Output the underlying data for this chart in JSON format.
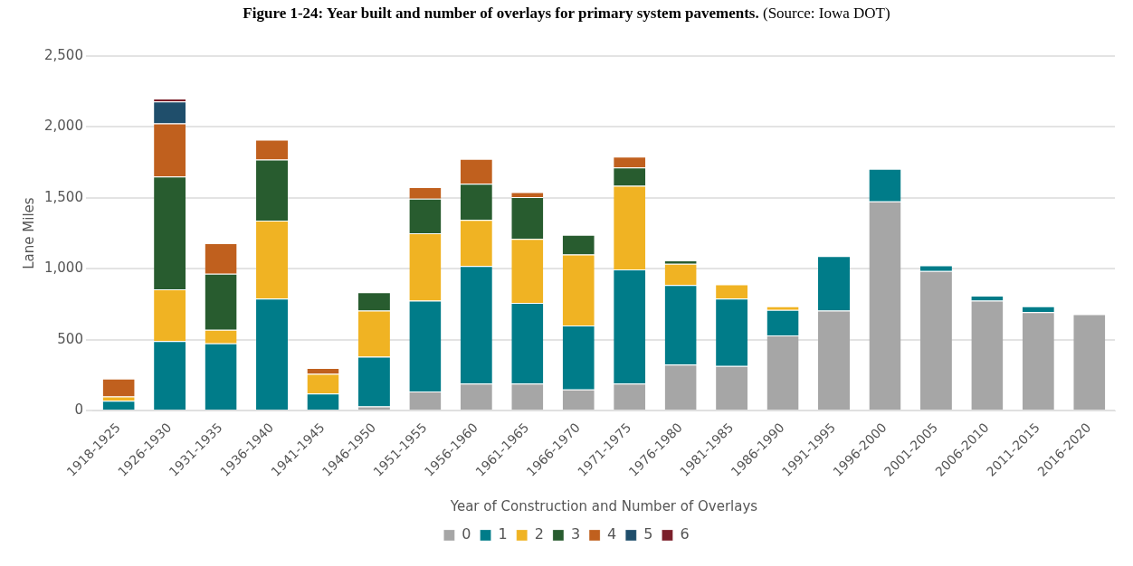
{
  "chart_data": {
    "type": "bar",
    "title": "Figure 1-24: Year built and number of overlays for primary system pavements.",
    "annotations": [
      "(Source: Iowa DOT)"
    ],
    "xlabel": "Year of Construction and Number of Overlays",
    "ylabel": "Lane Miles",
    "categories": [
      "1918-1925",
      "1926-1930",
      "1931-1935",
      "1936-1940",
      "1941-1945",
      "1946-1950",
      "1951-1955",
      "1956-1960",
      "1961-1965",
      "1966-1970",
      "1971-1975",
      "1976-1980",
      "1981-1985",
      "1986-1990",
      "1991-1995",
      "1996-2000",
      "2001-2005",
      "2006-2010",
      "2011-2015",
      "2016-2020"
    ],
    "stacked": true,
    "ylim": [
      0,
      2500
    ],
    "yticks": [
      {
        "value": 0,
        "label": "0"
      },
      {
        "value": 500,
        "label": "500"
      },
      {
        "value": 1000,
        "label": "1,000"
      },
      {
        "value": 1500,
        "label": "1,500"
      },
      {
        "value": 2000,
        "label": "2,000"
      },
      {
        "value": 2500,
        "label": "2,500"
      }
    ],
    "grid": "y",
    "legend": "bottom",
    "series": [
      {
        "name": "0",
        "color": "#a6a6a6",
        "values": [
          null,
          null,
          null,
          null,
          null,
          30,
          135,
          190,
          190,
          150,
          190,
          325,
          315,
          530,
          705,
          1475,
          985,
          775,
          695,
          680
        ]
      },
      {
        "name": "1",
        "color": "#007c89",
        "values": [
          70,
          490,
          475,
          790,
          120,
          350,
          640,
          830,
          570,
          450,
          805,
          560,
          475,
          180,
          385,
          230,
          40,
          35,
          40,
          null
        ]
      },
      {
        "name": "2",
        "color": "#f0b323",
        "values": [
          30,
          365,
          95,
          550,
          140,
          325,
          475,
          325,
          450,
          500,
          590,
          150,
          100,
          25,
          null,
          null,
          null,
          null,
          null,
          null
        ]
      },
      {
        "name": "3",
        "color": "#285c2f",
        "values": [
          null,
          795,
          395,
          430,
          null,
          130,
          245,
          255,
          295,
          140,
          130,
          25,
          null,
          null,
          null,
          null,
          null,
          null,
          null,
          null
        ]
      },
      {
        "name": "4",
        "color": "#c0601e",
        "values": [
          125,
          375,
          215,
          140,
          40,
          null,
          80,
          175,
          35,
          null,
          75,
          null,
          null,
          null,
          null,
          null,
          null,
          null,
          null,
          null
        ]
      },
      {
        "name": "5",
        "color": "#1f4e6b",
        "values": [
          null,
          155,
          null,
          null,
          null,
          null,
          null,
          null,
          null,
          null,
          null,
          null,
          null,
          null,
          null,
          null,
          null,
          null,
          null,
          null
        ]
      },
      {
        "name": "6",
        "color": "#7b1f2a",
        "values": [
          null,
          20,
          null,
          null,
          null,
          null,
          null,
          null,
          null,
          null,
          null,
          null,
          null,
          null,
          null,
          null,
          null,
          null,
          null,
          null
        ]
      }
    ]
  }
}
